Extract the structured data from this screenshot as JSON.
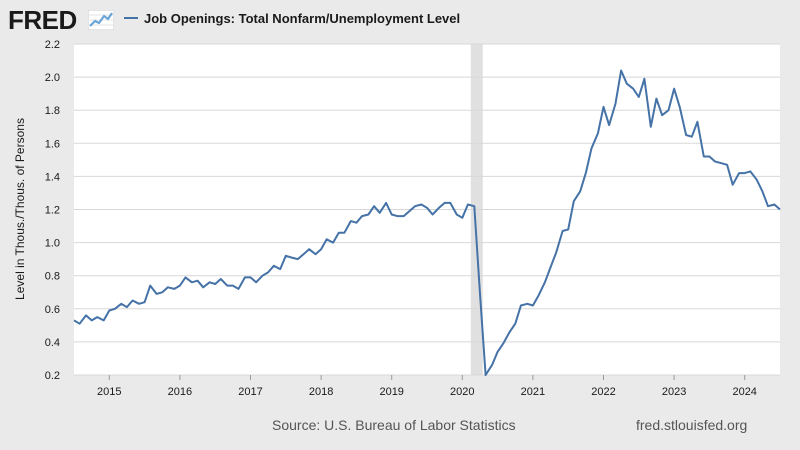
{
  "header": {
    "logo_text": "FRED",
    "logo_icon": "trend-chart-icon"
  },
  "footer": {
    "source": "Source: U.S. Bureau of Labor Statistics",
    "url": "fred.stlouisfed.org"
  },
  "colors": {
    "line": "#4572a7",
    "grid": "#d8d8d8",
    "recession": "#e0e0e0",
    "plot_bg": "#ffffff",
    "frame_bg": "#eaeaea",
    "text": "#1a1a1a",
    "logo_accent": "#6aa5d8"
  },
  "chart_data": {
    "type": "line",
    "title": "",
    "legend": [
      "Job Openings: Total Nonfarm/Unemployment Level"
    ],
    "legend_position": "top-left",
    "xlabel": "",
    "ylabel": "Level in Thous./Thous. of Persons",
    "xlim": [
      2014.5,
      2024.5
    ],
    "ylim": [
      0.2,
      2.2
    ],
    "yticks": [
      "0.2",
      "0.4",
      "0.6",
      "0.8",
      "1.0",
      "1.2",
      "1.4",
      "1.6",
      "1.8",
      "2.0",
      "2.2"
    ],
    "ytick_values": [
      0.2,
      0.4,
      0.6,
      0.8,
      1.0,
      1.2,
      1.4,
      1.6,
      1.8,
      2.0,
      2.2
    ],
    "xticks": [
      "2015",
      "2016",
      "2017",
      "2018",
      "2019",
      "2020",
      "2021",
      "2022",
      "2023",
      "2024"
    ],
    "xtick_values": [
      2015,
      2016,
      2017,
      2018,
      2019,
      2020,
      2021,
      2022,
      2023,
      2024
    ],
    "grid": true,
    "recessions": [
      [
        2020.12,
        2020.29
      ]
    ],
    "series": [
      {
        "name": "Job Openings: Total Nonfarm/Unemployment Level",
        "x": [
          2014.5,
          2014.58,
          2014.67,
          2014.75,
          2014.83,
          2014.92,
          2015.0,
          2015.08,
          2015.17,
          2015.25,
          2015.33,
          2015.42,
          2015.5,
          2015.58,
          2015.67,
          2015.75,
          2015.83,
          2015.92,
          2016.0,
          2016.08,
          2016.17,
          2016.25,
          2016.33,
          2016.42,
          2016.5,
          2016.58,
          2016.67,
          2016.75,
          2016.83,
          2016.92,
          2017.0,
          2017.08,
          2017.17,
          2017.25,
          2017.33,
          2017.42,
          2017.5,
          2017.58,
          2017.67,
          2017.75,
          2017.83,
          2017.92,
          2018.0,
          2018.08,
          2018.17,
          2018.25,
          2018.33,
          2018.42,
          2018.5,
          2018.58,
          2018.67,
          2018.75,
          2018.83,
          2018.92,
          2019.0,
          2019.08,
          2019.17,
          2019.25,
          2019.33,
          2019.42,
          2019.5,
          2019.58,
          2019.67,
          2019.75,
          2019.83,
          2019.92,
          2020.0,
          2020.08,
          2020.17,
          2020.25,
          2020.33,
          2020.42,
          2020.5,
          2020.58,
          2020.67,
          2020.75,
          2020.83,
          2020.92,
          2021.0,
          2021.08,
          2021.17,
          2021.25,
          2021.33,
          2021.42,
          2021.5,
          2021.58,
          2021.67,
          2021.75,
          2021.83,
          2021.92,
          2022.0,
          2022.08,
          2022.17,
          2022.25,
          2022.33,
          2022.42,
          2022.5,
          2022.58,
          2022.67,
          2022.75,
          2022.83,
          2022.92,
          2023.0,
          2023.08,
          2023.17,
          2023.25,
          2023.33,
          2023.42,
          2023.5,
          2023.58,
          2023.67,
          2023.75,
          2023.83,
          2023.92,
          2024.0,
          2024.08,
          2024.17,
          2024.25,
          2024.33,
          2024.42,
          2024.5
        ],
        "values": [
          0.53,
          0.51,
          0.56,
          0.53,
          0.55,
          0.53,
          0.59,
          0.6,
          0.63,
          0.61,
          0.65,
          0.63,
          0.64,
          0.74,
          0.69,
          0.7,
          0.73,
          0.72,
          0.74,
          0.79,
          0.76,
          0.77,
          0.73,
          0.76,
          0.75,
          0.78,
          0.74,
          0.74,
          0.72,
          0.79,
          0.79,
          0.76,
          0.8,
          0.82,
          0.86,
          0.84,
          0.92,
          0.91,
          0.9,
          0.93,
          0.96,
          0.93,
          0.96,
          1.02,
          1.0,
          1.06,
          1.06,
          1.13,
          1.12,
          1.16,
          1.17,
          1.22,
          1.18,
          1.24,
          1.17,
          1.16,
          1.16,
          1.19,
          1.22,
          1.23,
          1.21,
          1.17,
          1.21,
          1.24,
          1.24,
          1.17,
          1.15,
          1.23,
          1.22,
          0.7,
          0.2,
          0.26,
          0.34,
          0.39,
          0.46,
          0.51,
          0.62,
          0.63,
          0.62,
          0.68,
          0.76,
          0.85,
          0.94,
          1.07,
          1.08,
          1.25,
          1.31,
          1.42,
          1.57,
          1.66,
          1.82,
          1.71,
          1.84,
          2.04,
          1.96,
          1.93,
          1.88,
          1.99,
          1.7,
          1.87,
          1.77,
          1.8,
          1.93,
          1.82,
          1.65,
          1.64,
          1.73,
          1.52,
          1.52,
          1.49,
          1.48,
          1.47,
          1.35,
          1.42,
          1.42,
          1.43,
          1.38,
          1.31,
          1.22,
          1.23,
          1.2
        ]
      }
    ]
  }
}
